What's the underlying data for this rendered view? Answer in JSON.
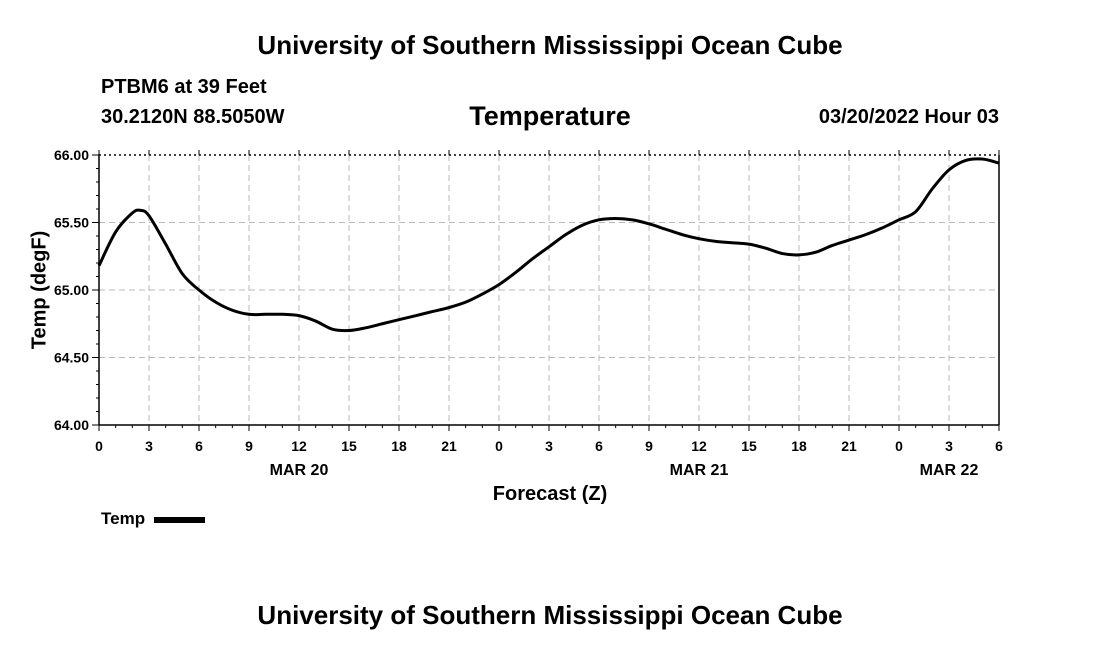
{
  "header": {
    "title": "University of Southern Mississippi Ocean Cube",
    "station": "PTBM6 at 39 Feet",
    "coordinates": "30.2120N  88.5050W",
    "datetime": "03/20/2022 Hour 03"
  },
  "footer": {
    "title": "University of Southern Mississippi Ocean Cube"
  },
  "chart_data": {
    "type": "line",
    "title": "Temperature",
    "xlabel": "Forecast (Z)",
    "ylabel": "Temp (degF)",
    "ylim": [
      64.0,
      66.0
    ],
    "xlim": [
      0,
      54
    ],
    "grid": true,
    "legend": {
      "placement": "bottom-left",
      "entries": [
        "Temp"
      ]
    },
    "y_ticks": [
      "64.00",
      "64.50",
      "65.00",
      "65.50",
      "66.00"
    ],
    "x_ticks": [
      {
        "hour": 0,
        "label": "0"
      },
      {
        "hour": 3,
        "label": "3"
      },
      {
        "hour": 6,
        "label": "6"
      },
      {
        "hour": 9,
        "label": "9"
      },
      {
        "hour": 12,
        "label": "12"
      },
      {
        "hour": 15,
        "label": "15"
      },
      {
        "hour": 18,
        "label": "18"
      },
      {
        "hour": 21,
        "label": "21"
      },
      {
        "hour": 24,
        "label": "0"
      },
      {
        "hour": 27,
        "label": "3"
      },
      {
        "hour": 30,
        "label": "6"
      },
      {
        "hour": 33,
        "label": "9"
      },
      {
        "hour": 36,
        "label": "12"
      },
      {
        "hour": 39,
        "label": "15"
      },
      {
        "hour": 42,
        "label": "18"
      },
      {
        "hour": 45,
        "label": "21"
      },
      {
        "hour": 48,
        "label": "0"
      },
      {
        "hour": 51,
        "label": "3"
      },
      {
        "hour": 54,
        "label": "6"
      }
    ],
    "date_labels": [
      {
        "hour": 12,
        "label": "MAR 20"
      },
      {
        "hour": 36,
        "label": "MAR 21"
      },
      {
        "hour": 51,
        "label": "MAR 22"
      }
    ],
    "series": [
      {
        "name": "Temp",
        "color": "#000000",
        "x": [
          0,
          1,
          2,
          2.5,
          3,
          4,
          5,
          6,
          7,
          8,
          9,
          10,
          11,
          12,
          13,
          14,
          15,
          16,
          17,
          18,
          19,
          20,
          21,
          22,
          23,
          24,
          25,
          26,
          27,
          28,
          29,
          30,
          31,
          32,
          33,
          34,
          35,
          36,
          37,
          38,
          39,
          40,
          41,
          42,
          43,
          44,
          45,
          46,
          47,
          48,
          49,
          50,
          51,
          52,
          53,
          54
        ],
        "values": [
          65.18,
          65.43,
          65.57,
          65.59,
          65.55,
          65.34,
          65.12,
          65.0,
          64.91,
          64.85,
          64.82,
          64.82,
          64.82,
          64.81,
          64.77,
          64.71,
          64.7,
          64.72,
          64.75,
          64.78,
          64.81,
          64.84,
          64.87,
          64.91,
          64.97,
          65.04,
          65.13,
          65.23,
          65.32,
          65.41,
          65.48,
          65.52,
          65.53,
          65.52,
          65.49,
          65.45,
          65.41,
          65.38,
          65.36,
          65.35,
          65.34,
          65.31,
          65.27,
          65.26,
          65.28,
          65.33,
          65.37,
          65.41,
          65.46,
          65.52,
          65.58,
          65.75,
          65.89,
          65.96,
          65.97,
          65.94
        ]
      }
    ]
  }
}
